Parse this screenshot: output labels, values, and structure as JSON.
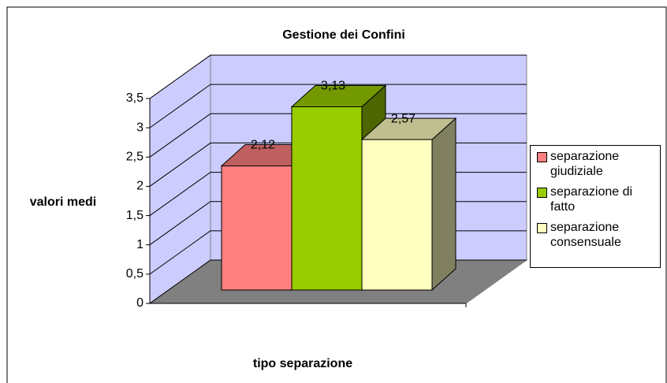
{
  "chart_data": {
    "type": "bar3d",
    "title": "Gestione dei Confini",
    "y_label": "valori medi",
    "x_label": "tipo separazione",
    "series": [
      {
        "name": "separazione giudiziale",
        "color": "#ff8080",
        "values": [
          2.12
        ],
        "value_labels": [
          "2,12"
        ]
      },
      {
        "name": "separazione di fatto",
        "color": "#99cc00",
        "values": [
          3.13
        ],
        "value_labels": [
          "3,13"
        ]
      },
      {
        "name": "separazione consensuale",
        "color": "#ffffc0",
        "values": [
          2.57
        ],
        "value_labels": [
          "2,57"
        ]
      }
    ],
    "ylim": [
      0,
      3.5
    ],
    "yticks": [
      0,
      {
        "value": 0.5,
        "label": "0,5"
      },
      1,
      {
        "value": 1.5,
        "label": "1,5"
      },
      2,
      {
        "value": 2.5,
        "label": "2,5"
      },
      3,
      {
        "value": 3.5,
        "label": "3,5"
      }
    ],
    "grid": true,
    "legend": "right"
  }
}
